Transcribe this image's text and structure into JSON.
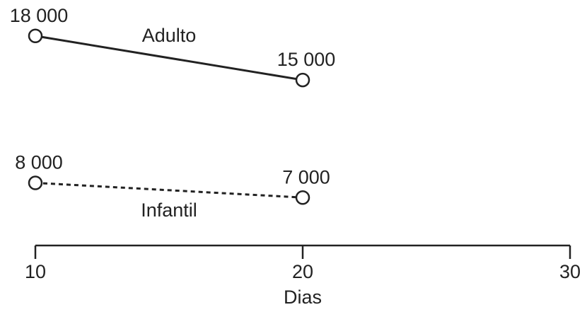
{
  "chart_data": {
    "type": "line",
    "x_label": "Dias",
    "xlim": [
      10,
      30
    ],
    "xticks": [
      10,
      20,
      30
    ],
    "ylim": [
      6000,
      19000
    ],
    "series": [
      {
        "name": "Adulto",
        "color": "#222222",
        "line_style": "solid",
        "x": [
          10,
          20
        ],
        "values": [
          18000,
          15000
        ],
        "value_labels": [
          "18 000",
          "15 000"
        ]
      },
      {
        "name": "Infantil",
        "color": "#222222",
        "line_style": "dashed",
        "x": [
          10,
          20
        ],
        "values": [
          8000,
          7000
        ],
        "value_labels": [
          "8 000",
          "7 000"
        ]
      }
    ]
  }
}
